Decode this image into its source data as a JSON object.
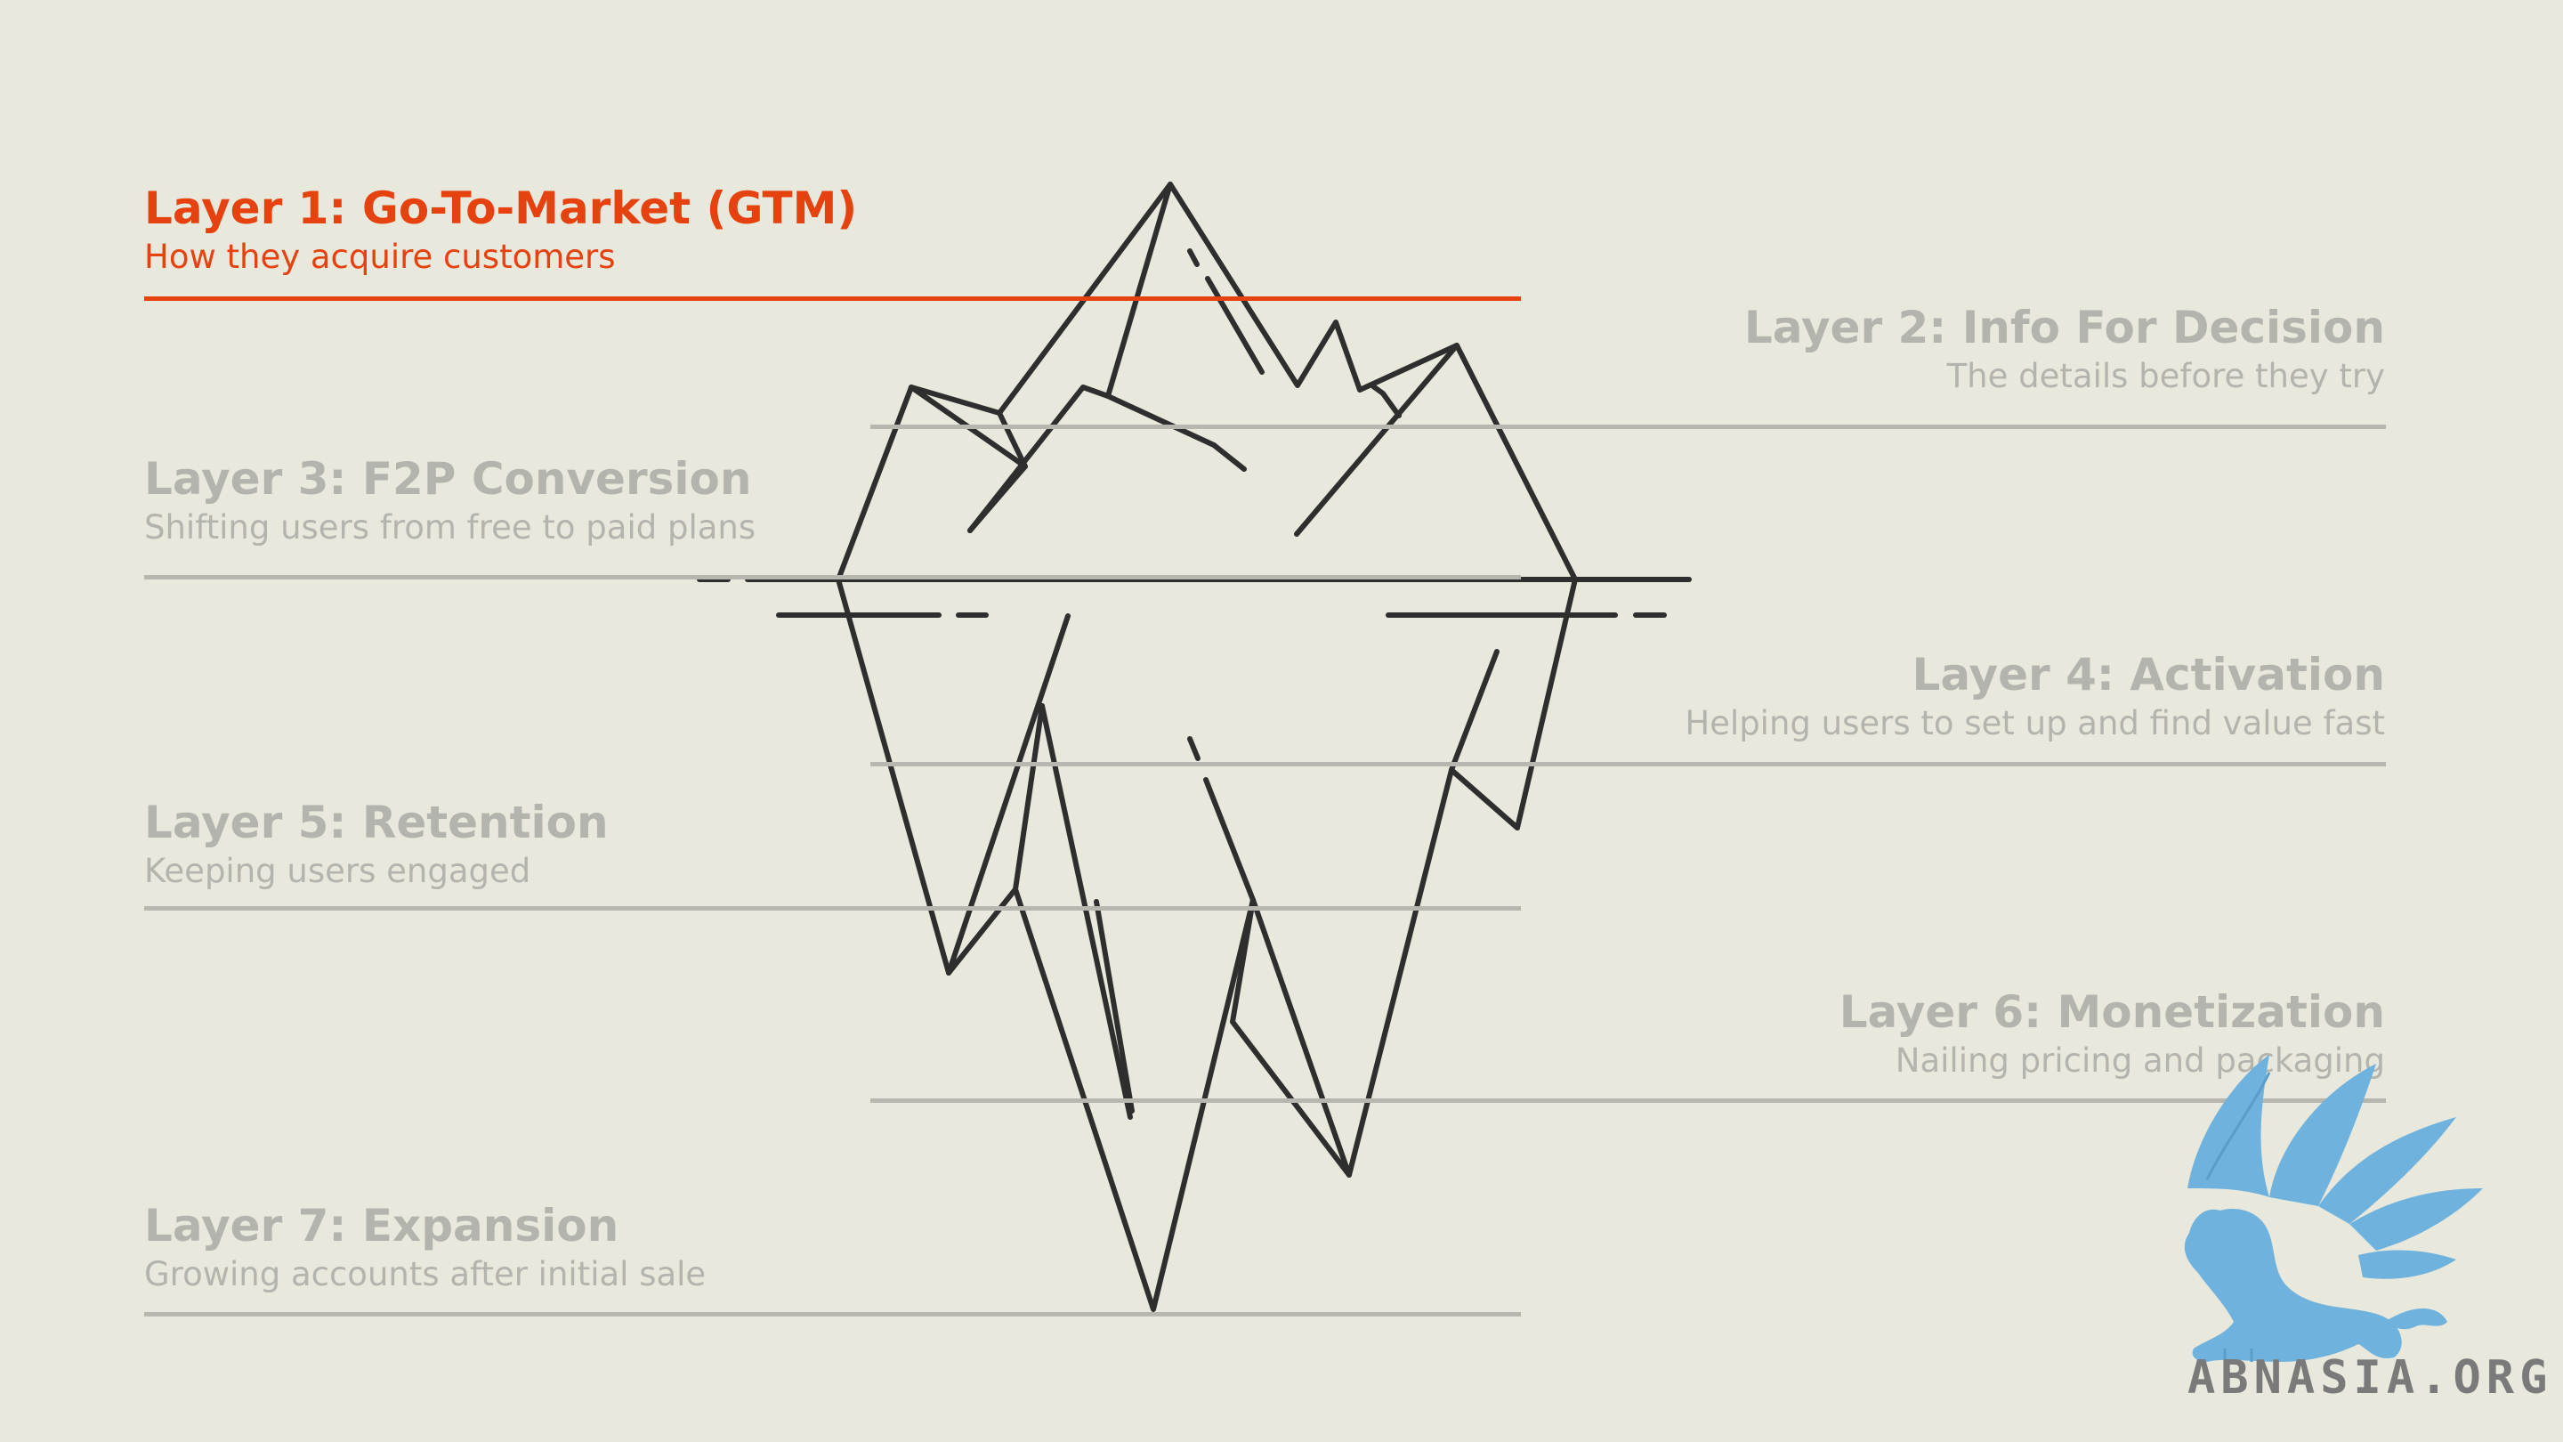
{
  "colors": {
    "background": "#e9e8dc",
    "active": "#e5420f",
    "inactive_text": "#b4b4ae",
    "rule": "#b7b7af",
    "iceberg_stroke": "#2e2e2e",
    "logo_blue": "#6fb2de"
  },
  "layers": [
    {
      "title": "Layer 1: Go-To-Market (GTM)",
      "subtitle": "How they acquire customers",
      "active": true
    },
    {
      "title": "Layer 2: Info For Decision",
      "subtitle": "The details before they try",
      "active": false
    },
    {
      "title": "Layer 3: F2P Conversion",
      "subtitle": "Shifting users from free to paid plans",
      "active": false
    },
    {
      "title": "Layer 4: Activation",
      "subtitle": "Helping users to set up and find value fast",
      "active": false
    },
    {
      "title": "Layer 5: Retention",
      "subtitle": "Keeping users engaged",
      "active": false
    },
    {
      "title": "Layer 6: Monetization",
      "subtitle": "Nailing pricing and packaging",
      "active": false
    },
    {
      "title": "Layer 7: Expansion",
      "subtitle": "Growing accounts after initial sale",
      "active": false
    }
  ],
  "logo": {
    "text": "ABNASIA.ORG",
    "icon": "griffin-icon"
  }
}
